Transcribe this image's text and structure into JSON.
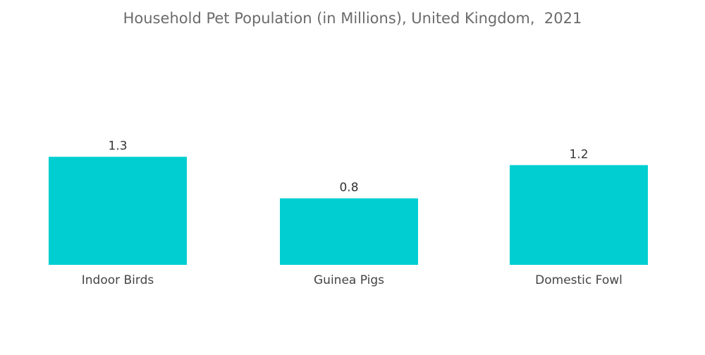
{
  "chart_data": {
    "type": "bar",
    "title": "Household Pet Population (in Millions), United Kingdom,  2021",
    "categories": [
      "Indoor Birds",
      "Guinea Pigs",
      "Domestic Fowl"
    ],
    "values": [
      1.3,
      0.8,
      1.2
    ],
    "value_labels": [
      "1.3",
      "0.8",
      "1.2"
    ],
    "xlabel": "",
    "ylabel": "",
    "ylim": [
      0,
      2.3
    ],
    "grid": false,
    "legend": "none",
    "colors": {
      "bar": "#00ced1"
    }
  }
}
